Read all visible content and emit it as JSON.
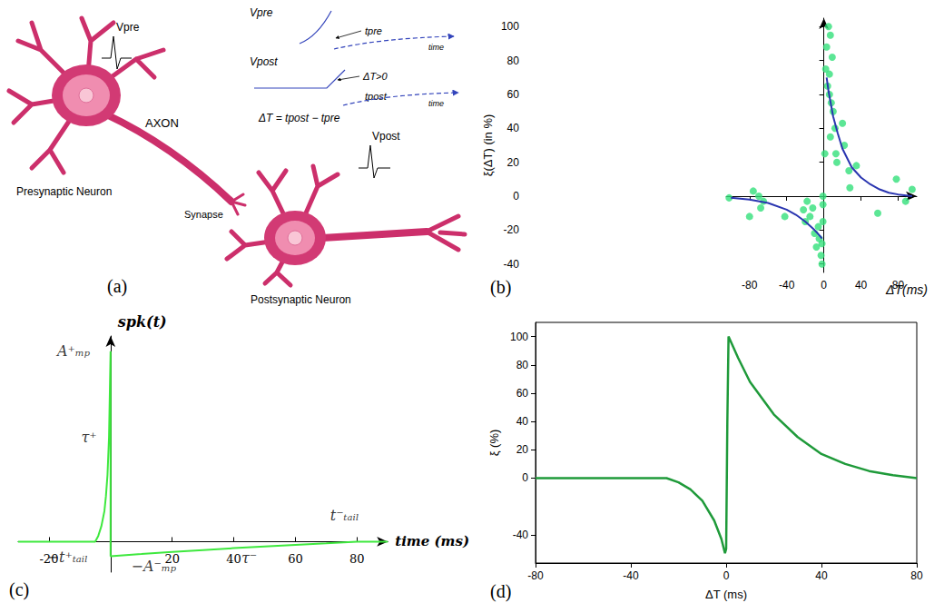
{
  "diagram": {
    "panel": "(a)",
    "labels": {
      "v_pre": "Vpre",
      "axon": "AXON",
      "synapse": "Synapse",
      "presynaptic": "Presynaptic Neuron",
      "v_post": "Vpost",
      "postsynaptic": "Postsynaptic Neuron"
    },
    "inset": {
      "v_pre": "Vpre",
      "t_pre": "tpre",
      "time": "time",
      "delta_positive": "ΔT>0",
      "v_post": "Vpost",
      "t_post": "tpost",
      "equation": "ΔT = tpost − tpre"
    }
  },
  "chart_data": [
    {
      "panel": "(b)",
      "type": "scatter",
      "xlabel": "ΔT(ms)",
      "ylabel": "ξ(ΔT) (in %)",
      "xlim": [
        -105,
        100
      ],
      "ylim": [
        -45,
        105
      ],
      "xticks": [
        -80,
        -40,
        0,
        40,
        80
      ],
      "yticks": [
        -40,
        -20,
        0,
        20,
        40,
        60,
        80,
        100
      ],
      "grid": false,
      "series": [
        {
          "type": "scatter",
          "color": "#33e07a",
          "marker": "circle",
          "x": [
            -102,
            -80,
            -76,
            -70,
            -68,
            -65,
            -42,
            -22,
            -20,
            -18,
            -15,
            -12,
            -10,
            -8,
            -6,
            -5,
            -3,
            -2,
            -1,
            -1,
            -1,
            -2,
            1,
            2,
            3,
            5,
            6,
            7,
            8,
            9,
            10,
            12,
            13,
            14,
            7,
            20,
            22,
            27,
            28,
            35,
            58,
            78,
            88,
            95,
            6,
            4
          ],
          "values": [
            -1,
            -12,
            3,
            0,
            -7,
            -3,
            -12,
            -8,
            -15,
            -3,
            -12,
            -7,
            -22,
            -30,
            -18,
            -25,
            -35,
            -40,
            -5,
            0,
            -15,
            -28,
            25,
            75,
            88,
            100,
            60,
            95,
            55,
            82,
            50,
            40,
            25,
            20,
            35,
            43,
            30,
            15,
            5,
            18,
            -10,
            10,
            -3,
            4,
            72,
            65
          ]
        },
        {
          "type": "line",
          "color": "#2a35b0",
          "line_style": "solid",
          "x": [
            -100,
            -80,
            -60,
            -40,
            -30,
            -20,
            -10,
            -5,
            -2
          ],
          "values": [
            -1,
            -2,
            -4,
            -8,
            -11,
            -15,
            -20,
            -23,
            -25
          ]
        },
        {
          "type": "line",
          "color": "#2a35b0",
          "line_style": "solid",
          "x": [
            3,
            5,
            10,
            15,
            20,
            30,
            40,
            50,
            60,
            70,
            80,
            95
          ],
          "values": [
            70,
            62,
            47,
            37,
            28,
            17,
            11,
            7,
            4,
            2,
            1,
            0
          ]
        }
      ]
    },
    {
      "panel": "(c)",
      "type": "line",
      "xlabel": "time (ms)",
      "ylabel": "spk(t)",
      "xlim": [
        -30,
        90
      ],
      "ylim": [
        -16,
        108
      ],
      "xticks": [
        -20,
        20,
        40,
        60,
        80
      ],
      "tick_labels": "x",
      "grid": false,
      "series": [
        {
          "type": "line",
          "color": "#3ee83e",
          "line_style": "solid",
          "x": [
            -30,
            -5,
            -4,
            -3,
            -2,
            -1.5,
            -1,
            -0.5,
            0,
            0,
            2,
            5,
            10,
            20,
            30,
            40,
            50,
            60,
            70,
            80,
            90
          ],
          "values": [
            0,
            0,
            3,
            8,
            16,
            24,
            35,
            55,
            100,
            -7.7,
            -7.4,
            -7,
            -6.5,
            -5.4,
            -4.4,
            -3.4,
            -2.5,
            -1.7,
            -0.9,
            0,
            0
          ]
        }
      ],
      "annotations": [
        {
          "text": "A⁺ₘₚ",
          "x": -12,
          "y": 100
        },
        {
          "text": "τ⁺",
          "x": -7,
          "y": 55
        },
        {
          "text": "−t⁺ₜₐᵢₗ",
          "x": -14,
          "y": -8
        },
        {
          "text": "−A⁻ₘₚ",
          "x": 14,
          "y": -13
        },
        {
          "text": "τ⁻",
          "x": 45,
          "y": -8.5
        },
        {
          "text": "t⁻ₜₐᵢₗ",
          "x": 76,
          "y": 14
        }
      ]
    },
    {
      "panel": "(d)",
      "type": "line",
      "xlabel": "ΔT (ms)",
      "ylabel": "ξ (%)",
      "xlim": [
        -80,
        80
      ],
      "ylim": [
        -60,
        110
      ],
      "xticks": [
        -80,
        -40,
        0,
        40,
        80
      ],
      "yticks": [
        -40,
        0,
        20,
        40,
        60,
        80,
        100
      ],
      "grid": false,
      "series": [
        {
          "type": "line",
          "color": "#1f9a3a",
          "line_style": "solid",
          "x": [
            -80,
            -40,
            -25,
            -20,
            -15,
            -10,
            -5,
            -2,
            -0.5,
            0,
            0.5,
            1,
            5,
            10,
            20,
            30,
            40,
            50,
            60,
            70,
            80
          ],
          "values": [
            0,
            0,
            0,
            -3,
            -8,
            -16,
            -30,
            -43,
            -53,
            -50,
            40,
            100,
            85,
            68,
            45,
            29,
            17,
            10,
            5,
            2,
            0
          ]
        }
      ]
    }
  ]
}
